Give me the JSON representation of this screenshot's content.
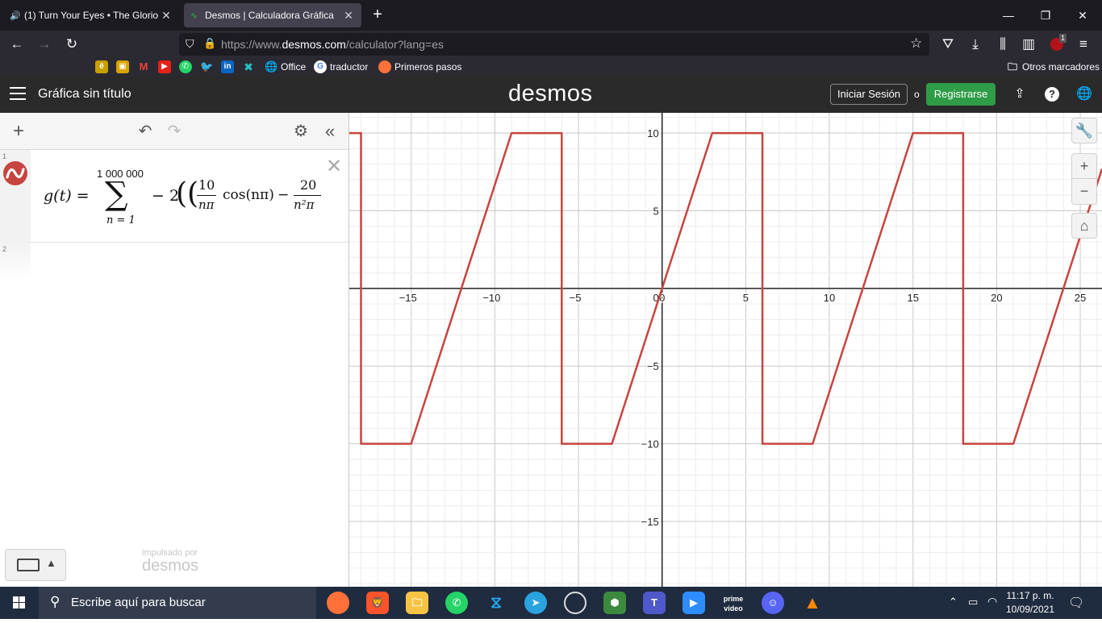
{
  "browser": {
    "tabs": [
      {
        "label": "(1) Turn Your Eyes • The Glorio",
        "active": false,
        "audio": true
      },
      {
        "label": "Desmos | Calculadora Gráfica",
        "active": true
      }
    ],
    "url_prefix": "https://www.",
    "url_domain": "desmos.com",
    "url_path": "/calculator?lang=es",
    "extension_badge": "1",
    "bookmarks": [
      {
        "icon": "e-bookmark-icon",
        "label": ""
      },
      {
        "icon": "photos-icon",
        "label": ""
      },
      {
        "icon": "gmail-icon",
        "label": ""
      },
      {
        "icon": "youtube-icon",
        "label": ""
      },
      {
        "icon": "whatsapp-icon",
        "label": ""
      },
      {
        "icon": "twitter-icon",
        "label": ""
      },
      {
        "icon": "linkedin-icon",
        "label": ""
      },
      {
        "icon": "hub-icon",
        "label": ""
      },
      {
        "icon": "globe-icon",
        "label": "Office"
      },
      {
        "icon": "google-icon",
        "label": "traductor"
      },
      {
        "icon": "firefox-icon",
        "label": "Primeros pasos"
      }
    ],
    "other_bookmarks": "Otros marcadores"
  },
  "desmos": {
    "title": "Gráfica sin título",
    "logo": "desmos",
    "login": "Iniciar Sesión",
    "or": "o",
    "signup": "Registrarse",
    "accent": "#2f9c47",
    "expressions": [
      {
        "line": "1",
        "color": "#c74440",
        "formula": {
          "lhs": "g(t) =",
          "upper": "1 000 000",
          "sigma": "∑",
          "lower": "n = 1",
          "coef": "− 2",
          "paren": "((",
          "frac1_num": "10",
          "frac1_den": "nπ",
          "cos": "cos(nπ)",
          "minus": "−",
          "frac2_num": "20",
          "frac2_den": "n²π"
        }
      },
      {
        "line": "2"
      }
    ],
    "powered_by": "impulsado por",
    "powered_logo": "desmos"
  },
  "chart_data": {
    "type": "line",
    "title": "",
    "xlabel": "",
    "ylabel": "",
    "xlim": [
      -18.7,
      26.3
    ],
    "ylim": [
      -19.2,
      11.3
    ],
    "x_ticks": [
      -15,
      -10,
      -5,
      0,
      5,
      10,
      15,
      20,
      25
    ],
    "y_ticks": [
      10,
      5,
      -5,
      -10,
      -15
    ],
    "grid": true,
    "series": [
      {
        "color": "#c74440",
        "x": [
          -18.7,
          -18,
          -18,
          -15,
          -9,
          -6,
          -6,
          -3,
          3,
          6,
          6,
          9,
          15,
          18,
          18,
          21,
          26.3
        ],
        "y": [
          10,
          10,
          -10,
          -10,
          10,
          10,
          -10,
          -10,
          10,
          10,
          -10,
          -10,
          10,
          10,
          -10,
          -10,
          7.7
        ]
      }
    ]
  },
  "taskbar": {
    "search_placeholder": "Escribe aquí para buscar",
    "time": "11:17 p. m.",
    "date": "10/09/2021"
  }
}
